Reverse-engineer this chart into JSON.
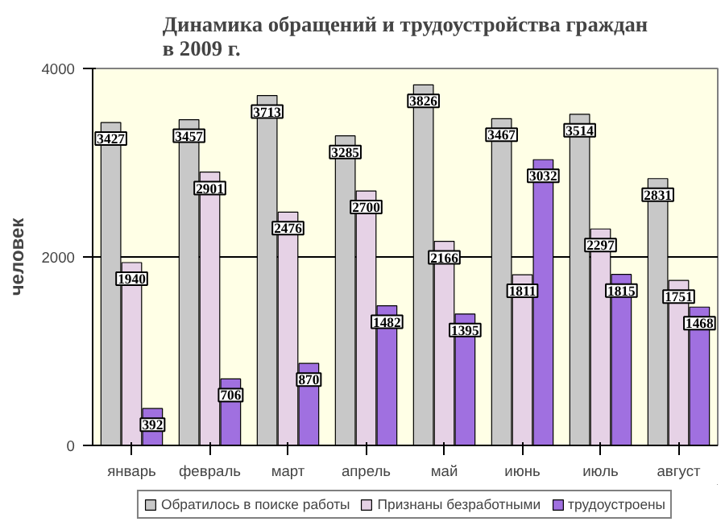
{
  "chart_data": {
    "type": "bar",
    "title": "Динамика обращений и трудоустройства граждан\nв 2009 г.",
    "ylabel": "человек",
    "categories": [
      "январь",
      "февраль",
      "март",
      "апрель",
      "май",
      "июнь",
      "июль",
      "август"
    ],
    "series": [
      {
        "name": "Обратилось в поиске работы",
        "color": "#c8c8c8",
        "values": [
          3427,
          3457,
          3713,
          3285,
          3826,
          3467,
          3514,
          2831
        ]
      },
      {
        "name": "Признаны безработными",
        "color": "#e6d2e6",
        "values": [
          1940,
          2901,
          2476,
          2700,
          2166,
          1811,
          2297,
          1751
        ]
      },
      {
        "name": "трудоустроены",
        "color": "#a070e0",
        "values": [
          392,
          706,
          870,
          1482,
          1395,
          3032,
          1815,
          1468
        ]
      }
    ],
    "ylim": [
      0,
      4000
    ],
    "yticks": [
      0,
      2000,
      4000
    ],
    "grid": "y",
    "legend": "bottom",
    "data_labels": true
  }
}
